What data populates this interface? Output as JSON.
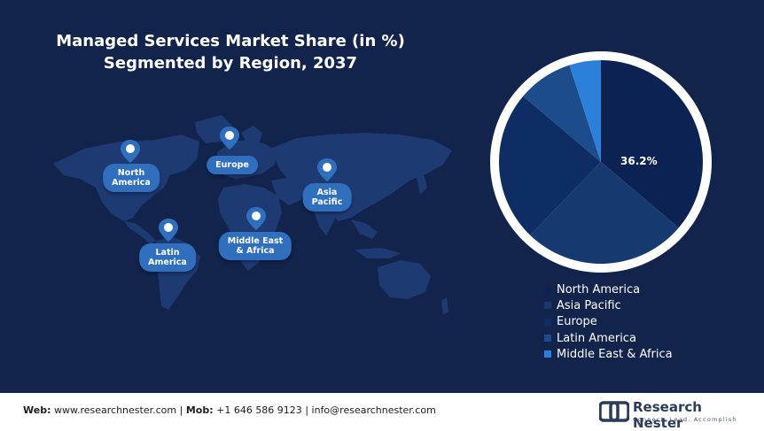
{
  "title": {
    "line1": "Managed Services Market Share (in %)",
    "line2": "Segmented by Region, 2037"
  },
  "map_labels": {
    "north_america": [
      "North",
      "America"
    ],
    "europe": [
      "Europe"
    ],
    "asia_pacific": [
      "Asia",
      "Pacific"
    ],
    "middle_east_africa": [
      "Middle East",
      "& Africa"
    ],
    "latin_america": [
      "Latin",
      "America"
    ]
  },
  "chart_data": {
    "type": "pie",
    "title": "Managed Services Market Share (in %) Segmented by Region, 2037",
    "legend_position": "bottom-right",
    "slices": [
      {
        "label": "North America",
        "value": 36.2,
        "color": "#0b2253",
        "value_label": "36.2%"
      },
      {
        "label": "Asia Pacific",
        "value": 26.0,
        "color": "#163a70"
      },
      {
        "label": "Europe",
        "value": 24.0,
        "color": "#0f2d65"
      },
      {
        "label": "Latin America",
        "value": 8.8,
        "color": "#1d4c8c"
      },
      {
        "label": "Middle East & Africa",
        "value": 5.0,
        "color": "#2b80da"
      }
    ]
  },
  "colors": {
    "background": "#12234c",
    "map_land": "#1e3a72",
    "pill": "#2f6fbe",
    "pie_ring": "#ffffff"
  },
  "footer": {
    "web_label": "Web:",
    "web_value": "www.researchnester.com",
    "sep1": "|",
    "mob_label": "Mob:",
    "mob_value": "+1 646 586 9123",
    "sep2": "|",
    "email": "info@researchnester.com"
  },
  "logo": {
    "name": "Research Nester",
    "tagline": "Connect. Lead. Accomplish",
    "icon": "research-nester-logo-icon"
  }
}
